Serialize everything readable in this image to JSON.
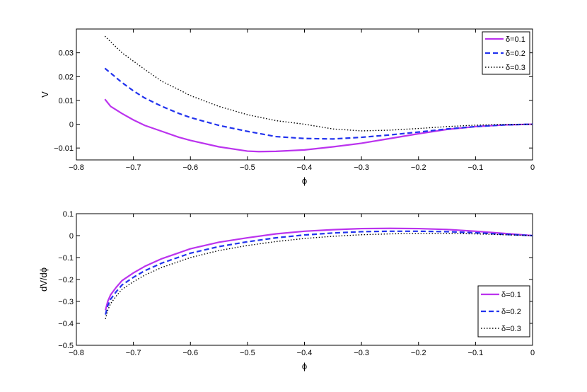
{
  "chart_data": [
    {
      "type": "line",
      "xlabel": "ϕ",
      "ylabel": "V",
      "xlim": [
        -0.8,
        0
      ],
      "ylim": [
        -0.015,
        0.04
      ],
      "xticks": [
        "−0.8",
        "−0.7",
        "−0.6",
        "−0.5",
        "−0.4",
        "−0.3",
        "−0.2",
        "−0.1",
        "0"
      ],
      "xtick_values": [
        -0.8,
        -0.7,
        -0.6,
        -0.5,
        -0.4,
        -0.3,
        -0.2,
        -0.1,
        0
      ],
      "yticks": [
        "−0.01",
        "0",
        "0.01",
        "0.02",
        "0.03"
      ],
      "ytick_values": [
        -0.01,
        0,
        0.01,
        0.02,
        0.03
      ],
      "legend_position": "top-right",
      "grid": false,
      "series": [
        {
          "name": "δ=0.1",
          "color": "#bb33ee",
          "style": "solid",
          "x": [
            -0.75,
            -0.74,
            -0.72,
            -0.7,
            -0.68,
            -0.65,
            -0.62,
            -0.6,
            -0.55,
            -0.5,
            -0.48,
            -0.45,
            -0.4,
            -0.35,
            -0.3,
            -0.25,
            -0.2,
            -0.15,
            -0.1,
            -0.05,
            0.0
          ],
          "y": [
            0.0105,
            0.0075,
            0.0045,
            0.0018,
            -0.0005,
            -0.003,
            -0.0055,
            -0.0068,
            -0.0095,
            -0.0113,
            -0.0115,
            -0.0114,
            -0.0108,
            -0.0095,
            -0.008,
            -0.006,
            -0.004,
            -0.0022,
            -0.001,
            -0.0003,
            0.0
          ]
        },
        {
          "name": "δ=0.2",
          "color": "#2233ee",
          "style": "dashed",
          "x": [
            -0.75,
            -0.72,
            -0.7,
            -0.68,
            -0.65,
            -0.62,
            -0.6,
            -0.55,
            -0.5,
            -0.45,
            -0.4,
            -0.35,
            -0.3,
            -0.25,
            -0.2,
            -0.15,
            -0.1,
            -0.05,
            0.0
          ],
          "y": [
            0.0235,
            0.0175,
            0.014,
            0.011,
            0.0075,
            0.0045,
            0.0028,
            -0.0005,
            -0.003,
            -0.0052,
            -0.006,
            -0.0062,
            -0.0055,
            -0.0045,
            -0.0033,
            -0.002,
            -0.001,
            -0.0003,
            0.0
          ]
        },
        {
          "name": "δ=0.3",
          "color": "#000000",
          "style": "dotted",
          "x": [
            -0.75,
            -0.72,
            -0.7,
            -0.68,
            -0.65,
            -0.62,
            -0.6,
            -0.55,
            -0.5,
            -0.45,
            -0.4,
            -0.35,
            -0.3,
            -0.25,
            -0.2,
            -0.15,
            -0.1,
            -0.05,
            0.0
          ],
          "y": [
            0.037,
            0.03,
            0.0265,
            0.023,
            0.018,
            0.0145,
            0.012,
            0.0075,
            0.004,
            0.0015,
            0.0,
            -0.002,
            -0.0028,
            -0.0025,
            -0.0018,
            -0.001,
            -0.0004,
            -0.0001,
            0.0
          ]
        }
      ]
    },
    {
      "type": "line",
      "xlabel": "ϕ",
      "ylabel": "dV/dϕ",
      "xlim": [
        -0.8,
        0
      ],
      "ylim": [
        -0.5,
        0.1
      ],
      "xticks": [
        "−0.8",
        "−0.7",
        "−0.6",
        "−0.5",
        "−0.4",
        "−0.3",
        "−0.2",
        "−0.1",
        "0"
      ],
      "xtick_values": [
        -0.8,
        -0.7,
        -0.6,
        -0.5,
        -0.4,
        -0.3,
        -0.2,
        -0.1,
        0
      ],
      "yticks": [
        "−0.5",
        "−0.4",
        "−0.3",
        "−0.2",
        "−0.1",
        "0",
        "0.1"
      ],
      "ytick_values": [
        -0.5,
        -0.4,
        -0.3,
        -0.2,
        -0.1,
        0,
        0.1
      ],
      "legend_position": "bottom-right",
      "grid": false,
      "series": [
        {
          "name": "δ=0.1",
          "color": "#bb33ee",
          "style": "solid",
          "x": [
            -0.749,
            -0.745,
            -0.74,
            -0.73,
            -0.72,
            -0.7,
            -0.68,
            -0.65,
            -0.6,
            -0.55,
            -0.5,
            -0.45,
            -0.4,
            -0.35,
            -0.3,
            -0.25,
            -0.2,
            -0.15,
            -0.1,
            -0.05,
            0.0
          ],
          "y": [
            -0.34,
            -0.3,
            -0.27,
            -0.235,
            -0.205,
            -0.17,
            -0.14,
            -0.105,
            -0.06,
            -0.03,
            -0.01,
            0.008,
            0.02,
            0.027,
            0.032,
            0.033,
            0.032,
            0.028,
            0.02,
            0.01,
            0.0
          ]
        },
        {
          "name": "δ=0.2",
          "color": "#2233ee",
          "style": "dashed",
          "x": [
            -0.749,
            -0.745,
            -0.74,
            -0.73,
            -0.72,
            -0.7,
            -0.68,
            -0.65,
            -0.6,
            -0.55,
            -0.5,
            -0.45,
            -0.4,
            -0.35,
            -0.3,
            -0.25,
            -0.2,
            -0.15,
            -0.1,
            -0.05,
            0.0
          ],
          "y": [
            -0.36,
            -0.32,
            -0.29,
            -0.255,
            -0.225,
            -0.19,
            -0.16,
            -0.125,
            -0.08,
            -0.05,
            -0.028,
            -0.01,
            0.003,
            0.012,
            0.018,
            0.02,
            0.02,
            0.018,
            0.013,
            0.006,
            0.0
          ]
        },
        {
          "name": "δ=0.3",
          "color": "#000000",
          "style": "dotted",
          "x": [
            -0.749,
            -0.745,
            -0.74,
            -0.73,
            -0.72,
            -0.7,
            -0.68,
            -0.65,
            -0.6,
            -0.55,
            -0.5,
            -0.45,
            -0.4,
            -0.35,
            -0.3,
            -0.25,
            -0.2,
            -0.15,
            -0.1,
            -0.05,
            0.0
          ],
          "y": [
            -0.38,
            -0.34,
            -0.31,
            -0.275,
            -0.245,
            -0.21,
            -0.18,
            -0.145,
            -0.1,
            -0.068,
            -0.045,
            -0.027,
            -0.013,
            -0.003,
            0.004,
            0.008,
            0.01,
            0.01,
            0.008,
            0.004,
            0.0
          ]
        }
      ]
    }
  ]
}
